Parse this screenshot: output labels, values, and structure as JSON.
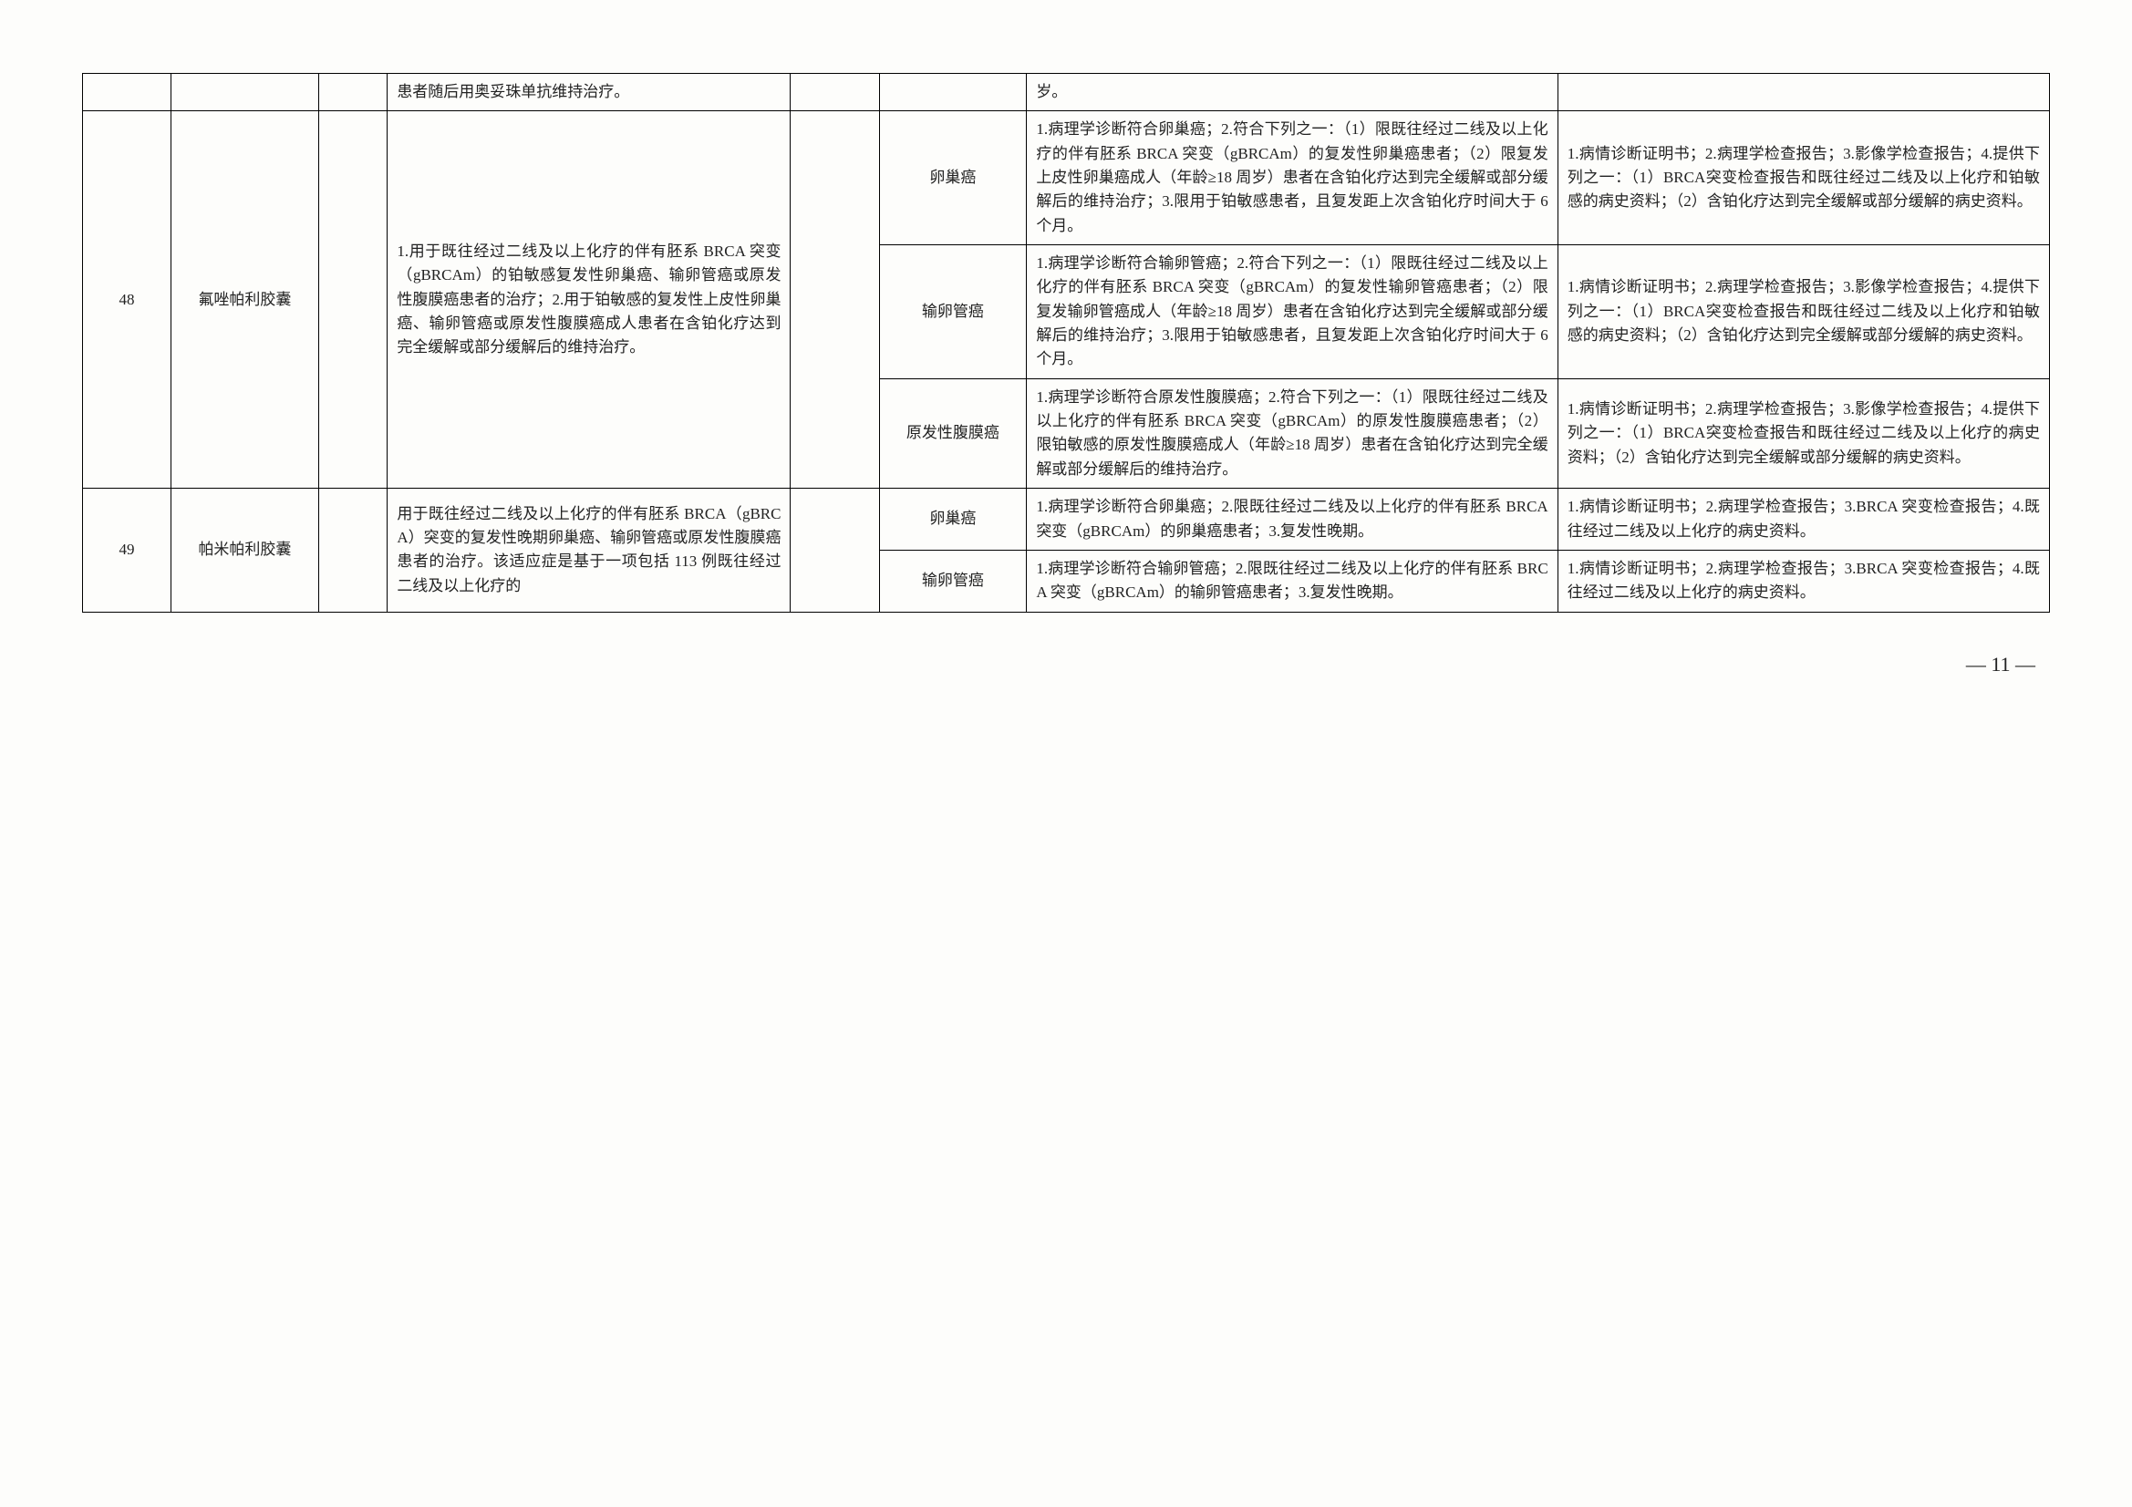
{
  "row0": {
    "col4": "患者随后用奥妥珠单抗维持治疗。",
    "col7": "岁。"
  },
  "row48": {
    "num": "48",
    "drug": "氟唑帕利胶囊",
    "indication": "1.用于既往经过二线及以上化疗的伴有胚系 BRCA 突变（gBRCAm）的铂敏感复发性卵巢癌、输卵管癌或原发性腹膜癌患者的治疗；2.用于铂敏感的复发性上皮性卵巢癌、输卵管癌或原发性腹膜癌成人患者在含铂化疗达到完全缓解或部分缓解后的维持治疗。",
    "sub1": {
      "site": "卵巢癌",
      "cond": "1.病理学诊断符合卵巢癌；2.符合下列之一：（1）限既往经过二线及以上化疗的伴有胚系 BRCA 突变（gBRCAm）的复发性卵巢癌患者；（2）限复发上皮性卵巢癌成人（年龄≥18 周岁）患者在含铂化疗达到完全缓解或部分缓解后的维持治疗；3.限用于铂敏感患者，且复发距上次含铂化疗时间大于 6 个月。",
      "mat": "1.病情诊断证明书；2.病理学检查报告；3.影像学检查报告；4.提供下列之一：（1）BRCA突变检查报告和既往经过二线及以上化疗和铂敏感的病史资料；（2）含铂化疗达到完全缓解或部分缓解的病史资料。"
    },
    "sub2": {
      "site": "输卵管癌",
      "cond": "1.病理学诊断符合输卵管癌；2.符合下列之一：（1）限既往经过二线及以上化疗的伴有胚系 BRCA 突变（gBRCAm）的复发性输卵管癌患者；（2）限复发输卵管癌成人（年龄≥18 周岁）患者在含铂化疗达到完全缓解或部分缓解后的维持治疗；3.限用于铂敏感患者，且复发距上次含铂化疗时间大于 6 个月。",
      "mat": "1.病情诊断证明书；2.病理学检查报告；3.影像学检查报告；4.提供下列之一：（1）BRCA突变检查报告和既往经过二线及以上化疗和铂敏感的病史资料；（2）含铂化疗达到完全缓解或部分缓解的病史资料。"
    },
    "sub3": {
      "site": "原发性腹膜癌",
      "cond": "1.病理学诊断符合原发性腹膜癌；2.符合下列之一：（1）限既往经过二线及以上化疗的伴有胚系 BRCA 突变（gBRCAm）的原发性腹膜癌患者；（2）限铂敏感的原发性腹膜癌成人（年龄≥18 周岁）患者在含铂化疗达到完全缓解或部分缓解后的维持治疗。",
      "mat": "1.病情诊断证明书；2.病理学检查报告；3.影像学检查报告；4.提供下列之一：（1）BRCA突变检查报告和既往经过二线及以上化疗的病史资料；（2）含铂化疗达到完全缓解或部分缓解的病史资料。"
    }
  },
  "row49": {
    "num": "49",
    "drug": "帕米帕利胶囊",
    "indication": "用于既往经过二线及以上化疗的伴有胚系 BRCA（gBRCA）突变的复发性晚期卵巢癌、输卵管癌或原发性腹膜癌患者的治疗。该适应症是基于一项包括 113 例既往经过二线及以上化疗的",
    "sub1": {
      "site": "卵巢癌",
      "cond": "1.病理学诊断符合卵巢癌；2.限既往经过二线及以上化疗的伴有胚系 BRCA 突变（gBRCAm）的卵巢癌患者；3.复发性晚期。",
      "mat": "1.病情诊断证明书；2.病理学检查报告；3.BRCA 突变检查报告；4.既往经过二线及以上化疗的病史资料。"
    },
    "sub2": {
      "site": "输卵管癌",
      "cond": "1.病理学诊断符合输卵管癌；2.限既往经过二线及以上化疗的伴有胚系 BRCA 突变（gBRCAm）的输卵管癌患者；3.复发性晚期。",
      "mat": "1.病情诊断证明书；2.病理学检查报告；3.BRCA 突变检查报告；4.既往经过二线及以上化疗的病史资料。"
    }
  },
  "pagenum": "— 11 —"
}
